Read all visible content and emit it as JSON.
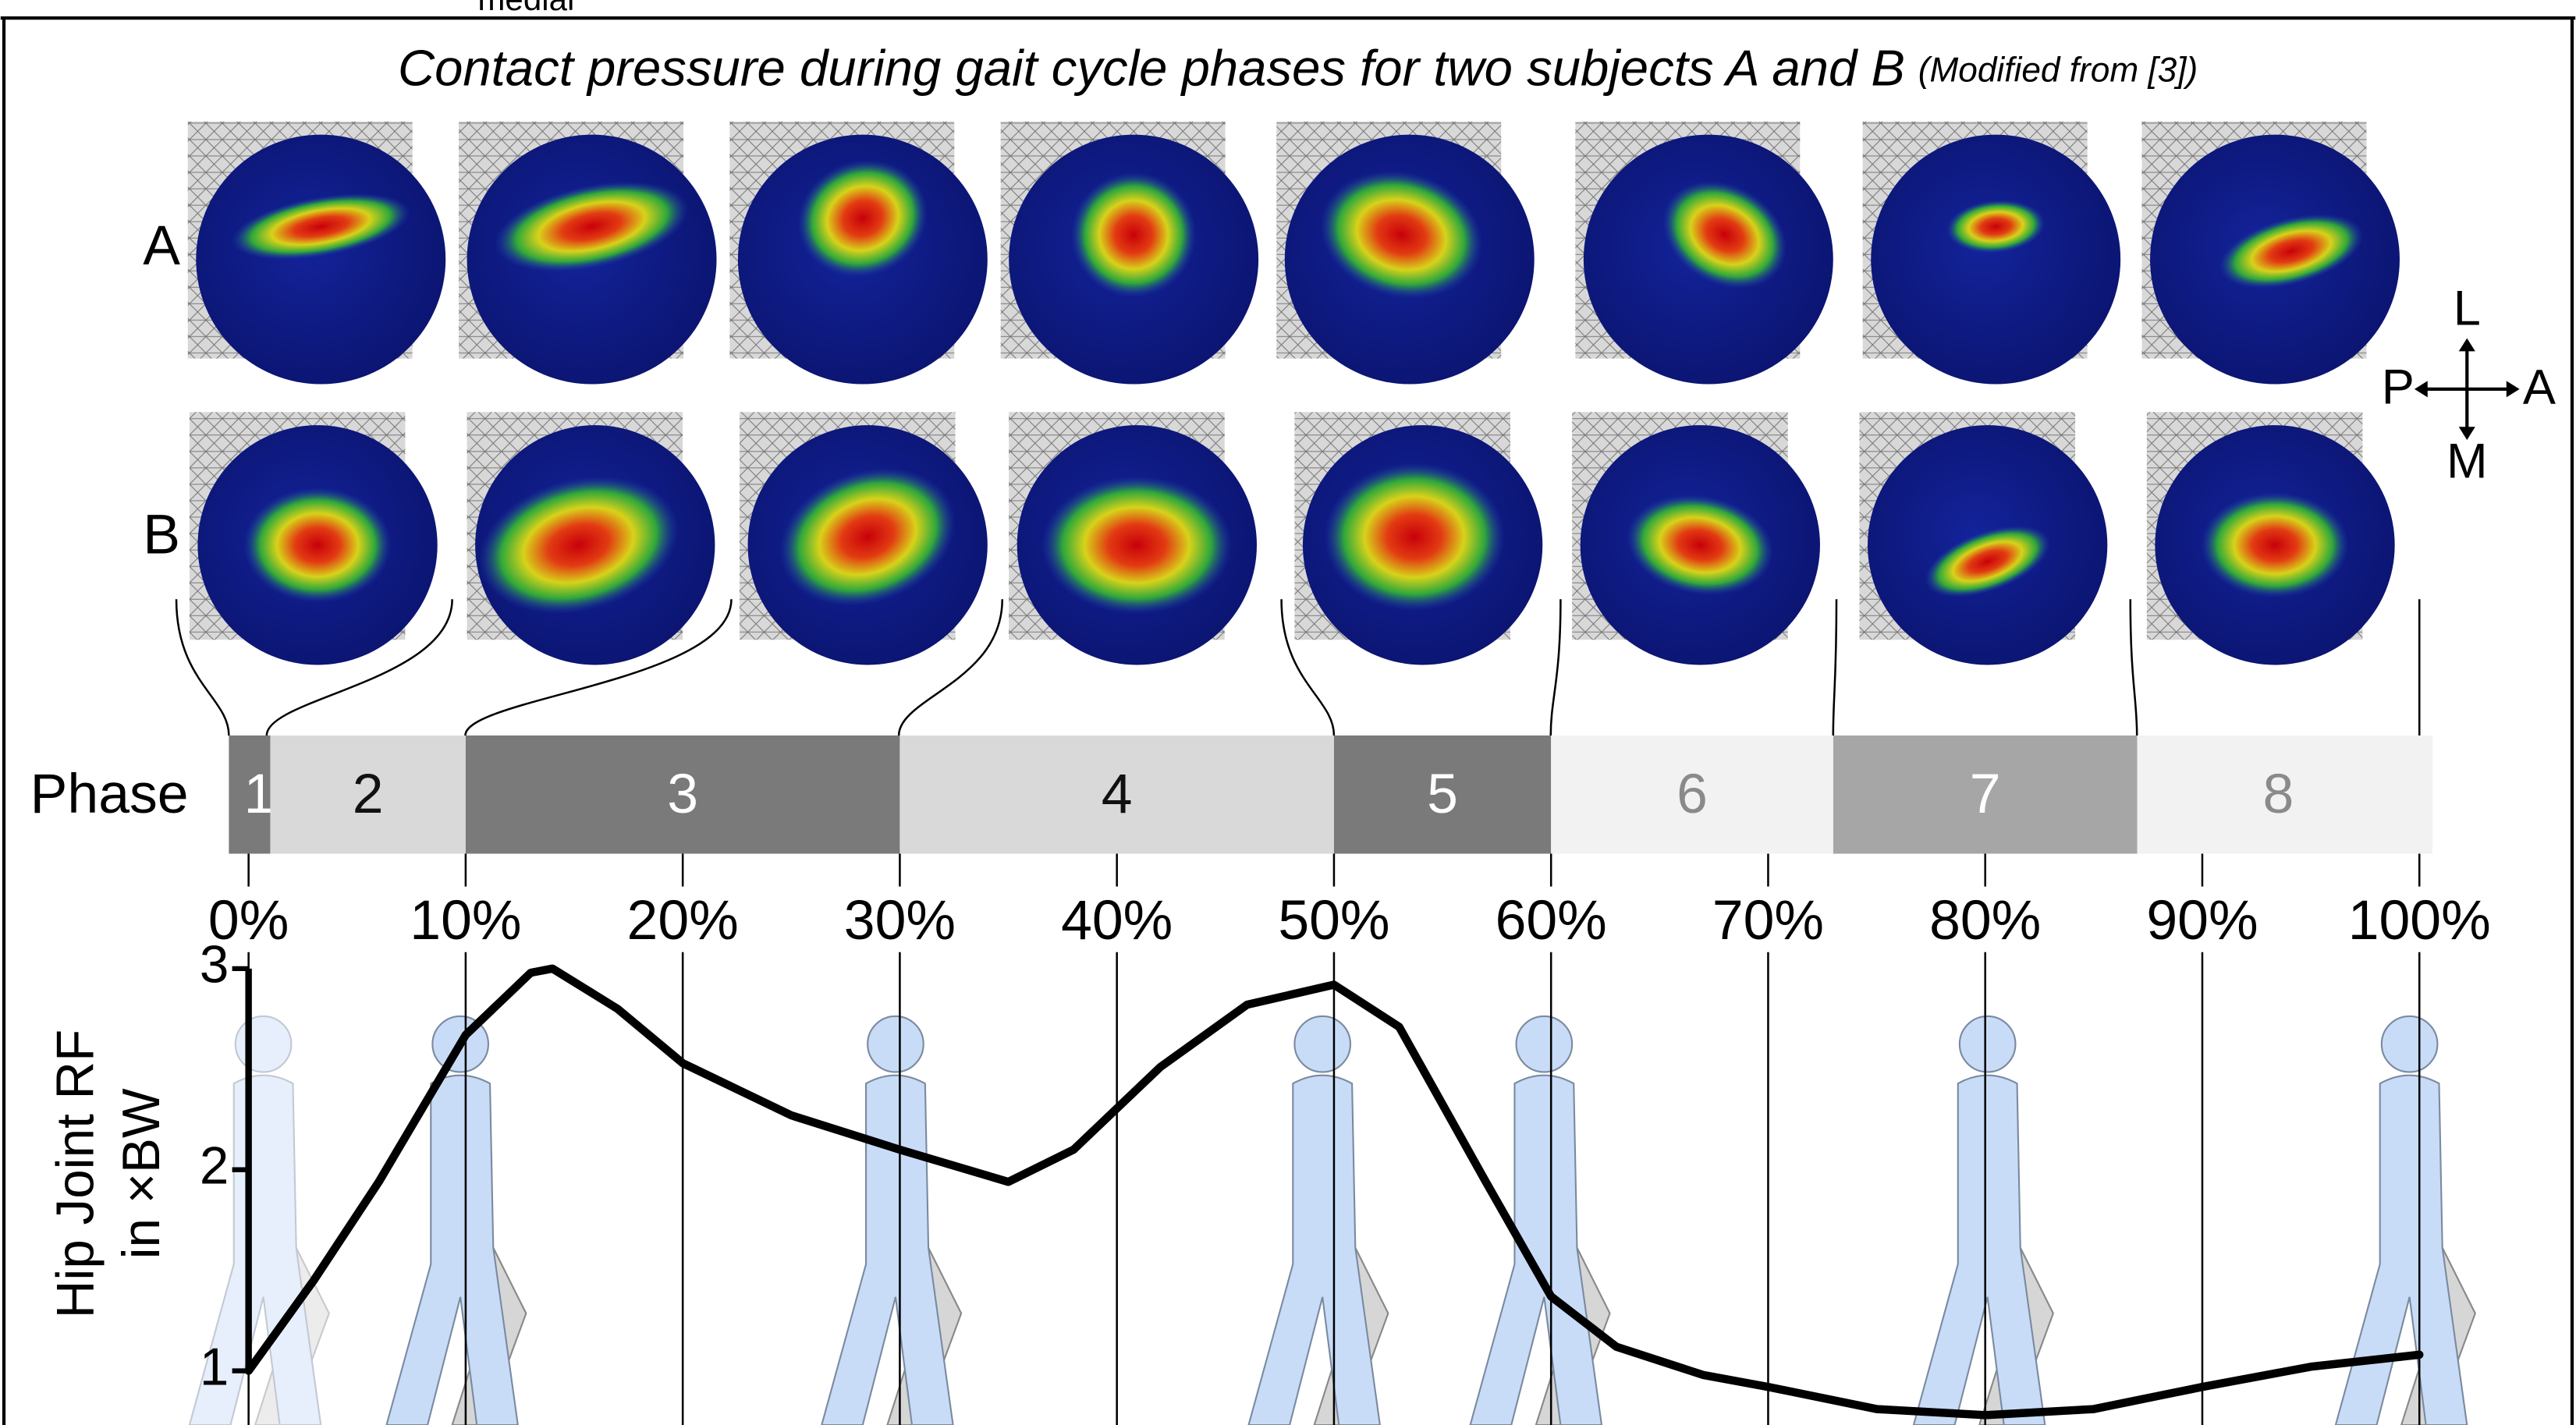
{
  "top_fragment": "medial",
  "chart_data": {
    "type": "line",
    "title": "Contact pressure during gait cycle phases for two subjects A and B",
    "title_note": "(Modified from [3])",
    "subjects": [
      "A",
      "B"
    ],
    "compass": {
      "up": "L",
      "left": "P",
      "right": "A",
      "down": "M"
    },
    "phase_title": "Phase",
    "phases": [
      {
        "label": "1",
        "start": 0,
        "end": 1,
        "color": "#7a7a7a",
        "text_color": "#ffffff"
      },
      {
        "label": "2",
        "start": 1,
        "end": 10,
        "color": "#d9d9d9",
        "text_color": "#111111"
      },
      {
        "label": "3",
        "start": 10,
        "end": 30,
        "color": "#7a7a7a",
        "text_color": "#ffffff"
      },
      {
        "label": "4",
        "start": 30,
        "end": 50,
        "color": "#d9d9d9",
        "text_color": "#111111"
      },
      {
        "label": "5",
        "start": 50,
        "end": 60,
        "color": "#7a7a7a",
        "text_color": "#ffffff"
      },
      {
        "label": "6",
        "start": 60,
        "end": 73,
        "color": "#f2f2f2",
        "text_color": "#8a8a8a"
      },
      {
        "label": "7",
        "start": 73,
        "end": 87,
        "color": "#a6a6a6",
        "text_color": "#ffffff"
      },
      {
        "label": "8",
        "start": 87,
        "end": 100,
        "color": "#f2f2f2",
        "text_color": "#8a8a8a"
      }
    ],
    "ylabel_lines": [
      "Hip Joint RF",
      "in ×BW"
    ],
    "x": [
      0,
      3,
      6,
      10,
      13,
      14,
      17,
      20,
      25,
      30,
      35,
      38,
      42,
      46,
      50,
      53,
      57,
      60,
      63,
      67,
      70,
      75,
      80,
      85,
      90,
      95,
      100
    ],
    "series": [
      {
        "color": "#000000",
        "values": [
          1.0,
          1.45,
          1.94,
          2.67,
          2.98,
          3.0,
          2.8,
          2.53,
          2.27,
          2.1,
          1.94,
          2.1,
          2.51,
          2.82,
          2.92,
          2.71,
          1.94,
          1.37,
          1.12,
          0.98,
          0.92,
          0.81,
          0.78,
          0.81,
          0.92,
          1.02,
          1.08
        ]
      }
    ],
    "xlim": [
      0,
      100
    ],
    "xticks": [
      {
        "value": 0,
        "label": "0%"
      },
      {
        "value": 10,
        "label": "10%"
      },
      {
        "value": 20,
        "label": "20%"
      },
      {
        "value": 30,
        "label": "30%"
      },
      {
        "value": 40,
        "label": "40%"
      },
      {
        "value": 50,
        "label": "50%"
      },
      {
        "value": 60,
        "label": "60%"
      },
      {
        "value": 70,
        "label": "70%"
      },
      {
        "value": 80,
        "label": "80%"
      },
      {
        "value": 90,
        "label": "90%"
      },
      {
        "value": 100,
        "label": "100%"
      }
    ],
    "ylim": [
      1,
      3
    ],
    "yticks": [
      1,
      2,
      3
    ],
    "grid": true
  }
}
